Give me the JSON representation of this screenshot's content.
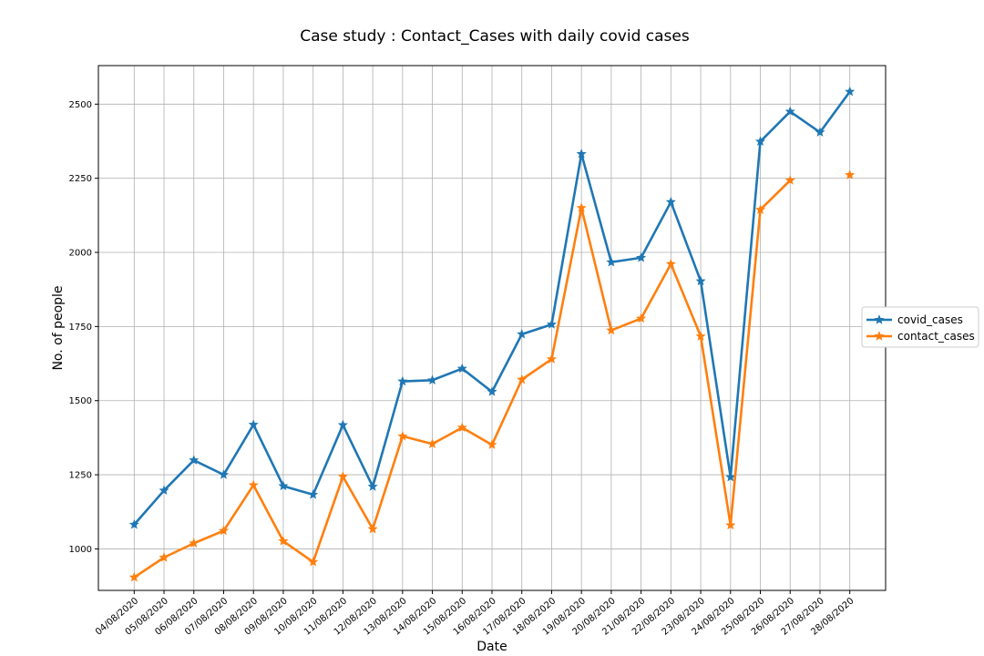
{
  "chart_data": {
    "type": "line",
    "title": "Case study : Contact_Cases with daily covid cases",
    "xlabel": "Date",
    "ylabel": "No. of people",
    "categories": [
      "04/08/2020",
      "05/08/2020",
      "06/08/2020",
      "07/08/2020",
      "08/08/2020",
      "09/08/2020",
      "10/08/2020",
      "11/08/2020",
      "12/08/2020",
      "13/08/2020",
      "14/08/2020",
      "15/08/2020",
      "16/08/2020",
      "17/08/2020",
      "18/08/2020",
      "19/08/2020",
      "20/08/2020",
      "21/08/2020",
      "22/08/2020",
      "23/08/2020",
      "24/08/2020",
      "25/08/2020",
      "26/08/2020",
      "27/08/2020",
      "28/08/2020"
    ],
    "series": [
      {
        "name": "covid_cases",
        "color": "#1f77b4",
        "values": [
          1082,
          1197,
          1299,
          1250,
          1419,
          1212,
          1183,
          1418,
          1210,
          1565,
          1569,
          1608,
          1530,
          1724,
          1757,
          2332,
          1967,
          1982,
          2170,
          1903,
          1242,
          2374,
          2475,
          2405,
          2542
        ]
      },
      {
        "name": "contact_cases",
        "color": "#ff7f0e",
        "values": [
          904,
          971,
          1019,
          1061,
          1215,
          1026,
          956,
          1244,
          1067,
          1380,
          1354,
          1409,
          1351,
          1571,
          1640,
          2150,
          1737,
          1777,
          1961,
          1717,
          1080,
          2144,
          2243,
          null,
          2261
        ]
      }
    ],
    "ylim": [
      860,
      2630
    ],
    "yticks": [
      1000,
      1250,
      1500,
      1750,
      2000,
      2250,
      2500
    ],
    "grid": true,
    "legend_position": "right"
  }
}
